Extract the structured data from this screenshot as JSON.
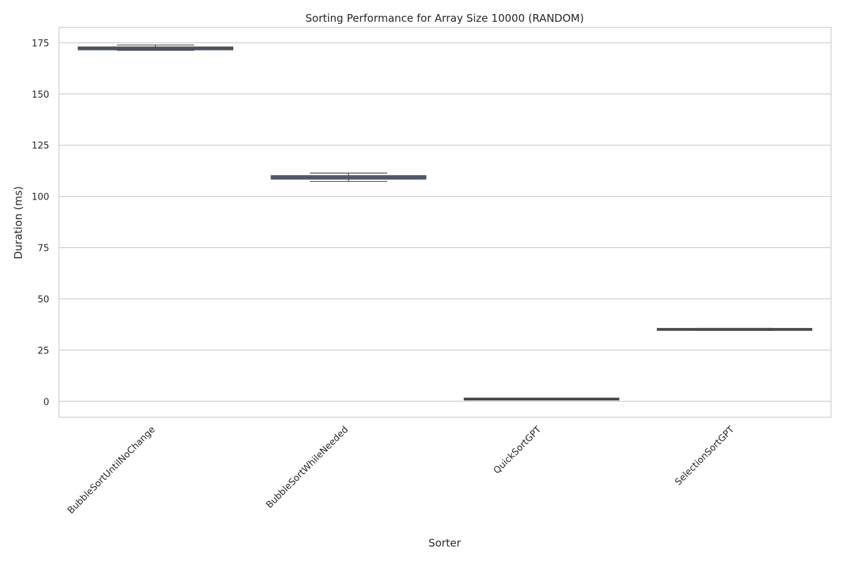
{
  "chart_data": {
    "type": "box",
    "title": "Sorting Performance for Array Size 10000 (RANDOM)",
    "xlabel": "Sorter",
    "ylabel": "Duration (ms)",
    "ylim": [
      -7.8,
      182.5
    ],
    "yticks": [
      0,
      25,
      50,
      75,
      100,
      125,
      150,
      175
    ],
    "categories": [
      "BubbleSortUntilNoChange",
      "BubbleSortWhileNeeded",
      "QuickSortGPT",
      "SelectionSortGPT"
    ],
    "boxes": [
      {
        "category": "BubbleSortUntilNoChange",
        "whisker_low": 171.3,
        "q1": 171.6,
        "median": 172.3,
        "q3": 172.9,
        "whisker_high": 173.9
      },
      {
        "category": "BubbleSortWhileNeeded",
        "whisker_low": 107.3,
        "q1": 108.5,
        "median": 109.3,
        "q3": 110.1,
        "whisker_high": 111.4
      },
      {
        "category": "QuickSortGPT",
        "whisker_low": 1.0,
        "q1": 1.0,
        "median": 1.1,
        "q3": 1.2,
        "whisker_high": 1.2
      },
      {
        "category": "SelectionSortGPT",
        "whisker_low": 34.6,
        "q1": 34.7,
        "median": 35.0,
        "q3": 35.5,
        "whisker_high": 35.6
      }
    ],
    "grid": true,
    "legend": "none",
    "colors": {
      "box_fill": "#4c72b0",
      "box_edge": "#4a4a4a",
      "grid": "#cccccc",
      "spine": "#cccccc"
    }
  }
}
